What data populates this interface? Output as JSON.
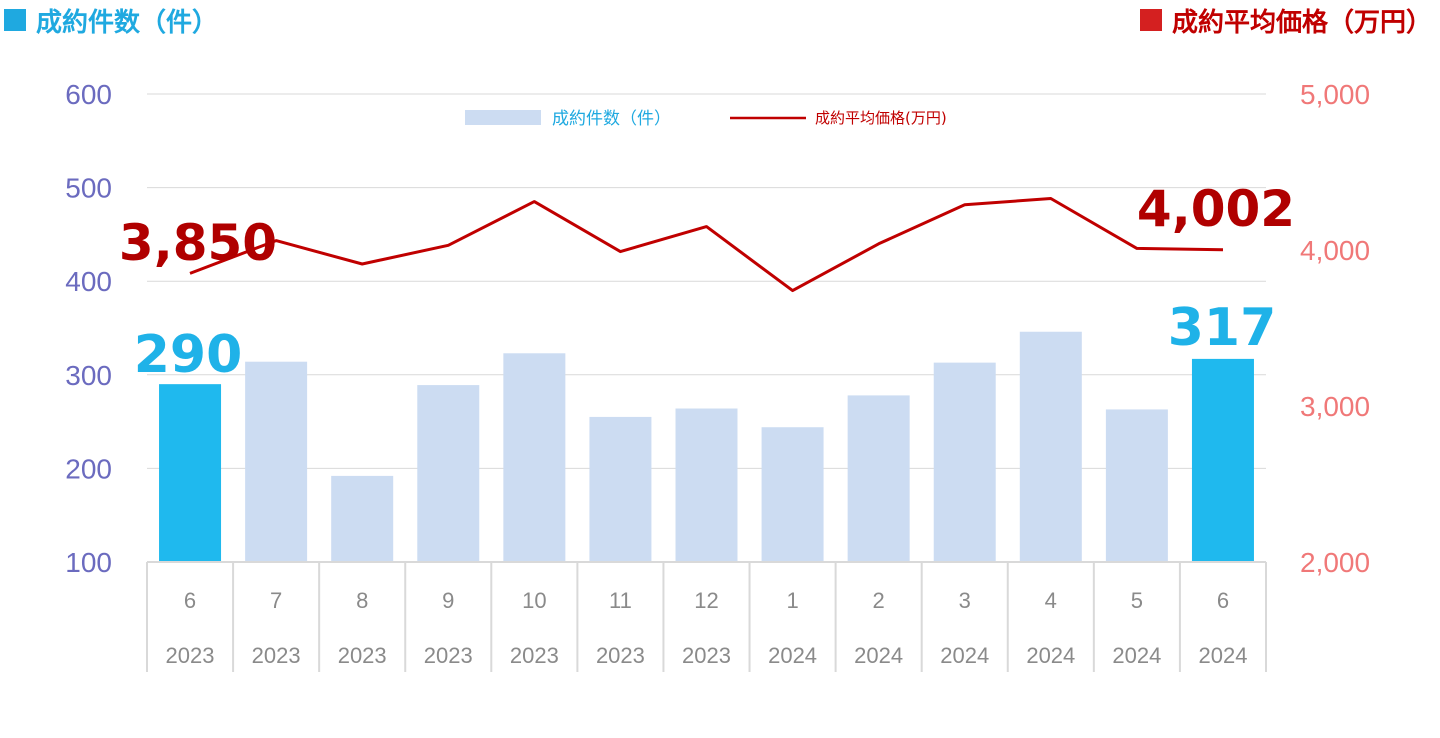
{
  "header": {
    "left_title": "成約件数（件）",
    "right_title": "成約平均価格（万円）"
  },
  "chart_data": {
    "type": "bar",
    "categories": [
      {
        "month": "6",
        "year": "2023"
      },
      {
        "month": "7",
        "year": "2023"
      },
      {
        "month": "8",
        "year": "2023"
      },
      {
        "month": "9",
        "year": "2023"
      },
      {
        "month": "10",
        "year": "2023"
      },
      {
        "month": "11",
        "year": "2023"
      },
      {
        "month": "12",
        "year": "2023"
      },
      {
        "month": "1",
        "year": "2024"
      },
      {
        "month": "2",
        "year": "2024"
      },
      {
        "month": "3",
        "year": "2024"
      },
      {
        "month": "4",
        "year": "2024"
      },
      {
        "month": "5",
        "year": "2024"
      },
      {
        "month": "6",
        "year": "2024"
      }
    ],
    "series": [
      {
        "name": "成約件数（件）",
        "type": "bar",
        "axis": "left",
        "values": [
          290,
          314,
          192,
          289,
          323,
          255,
          264,
          244,
          278,
          313,
          346,
          263,
          317
        ],
        "highlight_indices": [
          0,
          12
        ]
      },
      {
        "name": "成約平均価格(万円)",
        "type": "line",
        "axis": "right",
        "values": [
          3850,
          4060,
          3910,
          4030,
          4310,
          3990,
          4150,
          3740,
          4040,
          4290,
          4330,
          4010,
          4002
        ]
      }
    ],
    "y_left": {
      "min": 100,
      "max": 600,
      "ticks": [
        "100",
        "200",
        "300",
        "400",
        "500",
        "600"
      ]
    },
    "y_right": {
      "min": 2000,
      "max": 5000,
      "ticks": [
        "2,000",
        "3,000",
        "4,000",
        "5,000"
      ]
    },
    "annotations": {
      "bar_first": "290",
      "bar_last": "317",
      "line_first": "3,850",
      "line_last": "4,002"
    },
    "grid": true,
    "legend_position": "top-center"
  },
  "colors": {
    "bar": "#ccdcf2",
    "bar_highlight": "#1fb9ee",
    "line": "#c00000",
    "grid": "#d9d9d9"
  }
}
